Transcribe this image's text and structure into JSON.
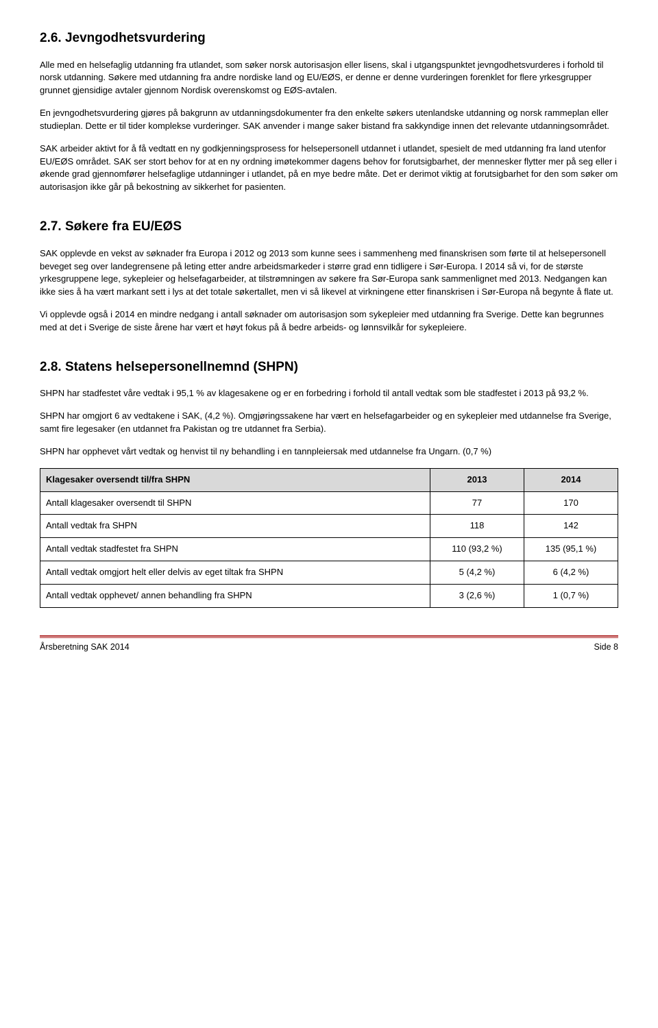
{
  "s1": {
    "title": "2.6. Jevngodhetsvurdering",
    "p1": "Alle med en helsefaglig utdanning fra utlandet, som søker norsk autorisasjon eller lisens, skal i utgangspunktet jevngodhetsvurderes i forhold til norsk utdanning. Søkere med utdanning fra andre nordiske land og EU/EØS, er denne er denne vurderingen forenklet for flere yrkesgrupper grunnet gjensidige avtaler gjennom Nordisk overenskomst og EØS-avtalen.",
    "p2": "En jevngodhetsvurdering gjøres på bakgrunn av utdanningsdokumenter fra den enkelte søkers utenlandske utdanning og norsk rammeplan eller studieplan. Dette er til tider komplekse vurderinger. SAK anvender i mange saker bistand fra sakkyndige innen det relevante utdanningsområdet.",
    "p3": "SAK arbeider aktivt for å få vedtatt en ny godkjenningsprosess for helsepersonell utdannet i utlandet, spesielt de med utdanning fra land utenfor EU/EØS området. SAK ser stort behov for at en ny ordning imøtekommer dagens behov for forutsigbarhet, der mennesker flytter mer på seg eller i økende grad gjennomfører helsefaglige utdanninger i utlandet, på en mye bedre måte. Det er derimot viktig at forutsigbarhet for den som søker om autorisasjon ikke går på bekostning av sikkerhet for pasienten."
  },
  "s2": {
    "title": "2.7. Søkere fra EU/EØS",
    "p1": "SAK opplevde en vekst av søknader fra Europa i 2012 og 2013 som kunne sees i sammenheng med finanskrisen som førte til at helsepersonell beveget seg over landegrensene på leting etter andre arbeidsmarkeder i større grad enn tidligere i Sør-Europa. I 2014 så vi, for de største yrkesgruppene lege, sykepleier og helsefagarbeider, at tilstrømningen av søkere fra Sør-Europa sank sammenlignet med 2013. Nedgangen kan ikke sies å ha vært markant sett i lys at det totale søkertallet, men vi så likevel at virkningene etter finanskrisen i Sør-Europa nå begynte å flate ut.",
    "p2": "Vi opplevde også i 2014 en mindre nedgang i antall søknader om autorisasjon som sykepleier med utdanning fra Sverige. Dette kan begrunnes med at det i Sverige de siste årene har vært et høyt fokus på å bedre arbeids- og lønnsvilkår for sykepleiere."
  },
  "s3": {
    "title": "2.8. Statens helsepersonellnemnd (SHPN)",
    "p1": "SHPN har stadfestet våre vedtak i 95,1 % av klagesakene og er en forbedring i forhold til antall vedtak som ble stadfestet i 2013 på 93,2 %.",
    "p2": "SHPN har omgjort 6 av vedtakene i SAK, (4,2 %). Omgjøringssakene har vært en helsefagarbeider og en sykepleier med utdannelse fra Sverige, samt fire legesaker (en utdannet fra Pakistan og tre utdannet fra Serbia).",
    "p3": "SHPN har opphevet vårt vedtak og henvist til ny behandling i en tannpleiersak med utdannelse fra Ungarn. (0,7 %)"
  },
  "table": {
    "header": {
      "c0": "Klagesaker oversendt til/fra SHPN",
      "c1": "2013",
      "c2": "2014"
    },
    "rows": [
      {
        "c0": "Antall klagesaker oversendt til SHPN",
        "c1": "77",
        "c2": "170"
      },
      {
        "c0": "Antall vedtak fra SHPN",
        "c1": "118",
        "c2": "142"
      },
      {
        "c0": "Antall vedtak stadfestet fra SHPN",
        "c1": "110 (93,2 %)",
        "c2": "135 (95,1 %)"
      },
      {
        "c0": "Antall vedtak omgjort helt eller delvis av eget tiltak fra SHPN",
        "c1": "5 (4,2 %)",
        "c2": "6 (4,2 %)"
      },
      {
        "c0": "Antall vedtak opphevet/ annen behandling fra SHPN",
        "c1": "3 (2,6 %)",
        "c2": "1 (0,7 %)"
      }
    ]
  },
  "footer": {
    "left": "Årsberetning SAK 2014",
    "right": "Side 8"
  }
}
